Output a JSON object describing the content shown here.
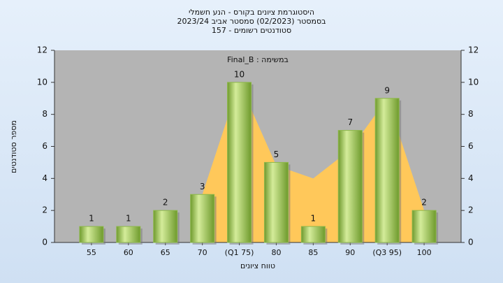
{
  "chart_data": {
    "type": "bar",
    "title": "היסטוגרמת ציונים בקורס - הנע חשמלי",
    "subtitle": "בסמסטר  (02/2023)  סמסטר אביב 2023/24",
    "subtitle2": "סטודנטים רשומים - 157",
    "annotation": "במשימה : Final_B",
    "y_label": "מספר סטודנטים",
    "x_label": "טווח ציונים",
    "categories": [
      "55",
      "60",
      "65",
      "70",
      "(Q1 75)",
      "80",
      "85",
      "90",
      "(Q3 95)",
      "100"
    ],
    "values": [
      1,
      1,
      2,
      3,
      10,
      5,
      1,
      7,
      9,
      2
    ],
    "color": "#8db84a",
    "area": {
      "values": [
        null,
        null,
        null,
        3,
        10,
        4.8,
        4,
        5.8,
        9,
        2
      ],
      "color": "#ffc85a"
    },
    "ylim": [
      0,
      12
    ],
    "yticks": [
      0,
      2,
      4,
      6,
      8,
      10,
      12
    ],
    "y2lim": [
      0,
      12
    ],
    "y2ticks": [
      0,
      2,
      4,
      6,
      8,
      10,
      12
    ],
    "grid": false
  }
}
